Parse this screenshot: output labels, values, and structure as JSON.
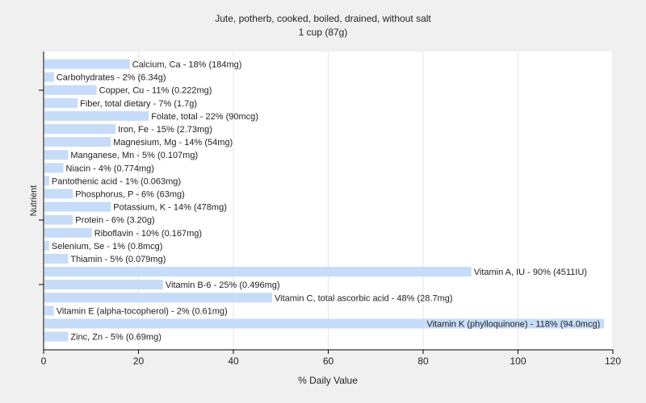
{
  "chart_data": {
    "type": "bar",
    "orientation": "horizontal",
    "title": "Jute, potherb, cooked, boiled, drained, without salt",
    "subtitle": "1 cup (87g)",
    "xlabel": "% Daily Value",
    "ylabel": "Nutrient",
    "xlim": [
      0,
      120
    ],
    "xticks": [
      0,
      20,
      40,
      60,
      80,
      100,
      120
    ],
    "grid": true,
    "bar_color": "#c6dcf9",
    "categories": [
      "Calcium, Ca",
      "Carbohydrates",
      "Copper, Cu",
      "Fiber, total dietary",
      "Folate, total",
      "Iron, Fe",
      "Magnesium, Mg",
      "Manganese, Mn",
      "Niacin",
      "Pantothenic acid",
      "Phosphorus, P",
      "Potassium, K",
      "Protein",
      "Riboflavin",
      "Selenium, Se",
      "Thiamin",
      "Vitamin A, IU",
      "Vitamin B-6",
      "Vitamin C, total ascorbic acid",
      "Vitamin E (alpha-tocopherol)",
      "Vitamin K (phylloquinone)",
      "Zinc, Zn"
    ],
    "values": [
      18,
      2,
      11,
      7,
      22,
      15,
      14,
      5,
      4,
      1,
      6,
      14,
      6,
      10,
      1,
      5,
      90,
      25,
      48,
      2,
      118,
      5
    ],
    "labels": [
      "Calcium, Ca - 18% (184mg)",
      "Carbohydrates - 2% (6.34g)",
      "Copper, Cu - 11% (0.222mg)",
      "Fiber, total dietary - 7% (1.7g)",
      "Folate, total - 22% (90mcg)",
      "Iron, Fe - 15% (2.73mg)",
      "Magnesium, Mg - 14% (54mg)",
      "Manganese, Mn - 5% (0.107mg)",
      "Niacin - 4% (0.774mg)",
      "Pantothenic acid - 1% (0.063mg)",
      "Phosphorus, P - 6% (63mg)",
      "Potassium, K - 14% (478mg)",
      "Protein - 6% (3.20g)",
      "Riboflavin - 10% (0.167mg)",
      "Selenium, Se - 1% (0.8mcg)",
      "Thiamin - 5% (0.079mg)",
      "Vitamin A, IU - 90% (4511IU)",
      "Vitamin B-6 - 25% (0.496mg)",
      "Vitamin C, total ascorbic acid - 48% (28.7mg)",
      "Vitamin E (alpha-tocopherol) - 2% (0.61mg)",
      "Vitamin K (phylloquinone) - 118% (94.0mcg)",
      "Zinc, Zn - 5% (0.69mg)"
    ]
  }
}
